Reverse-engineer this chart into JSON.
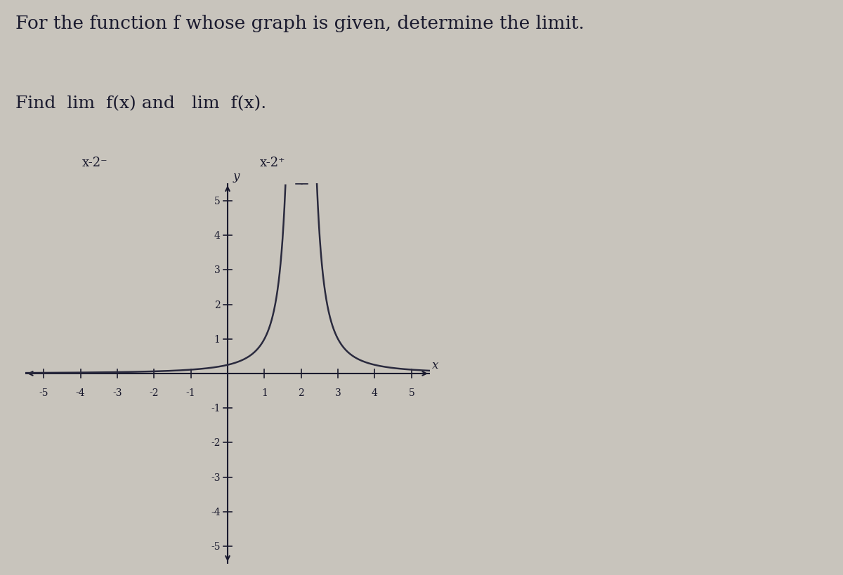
{
  "title_line1": "For the function f whose graph is given, determine the limit.",
  "find_text": "Find  lim  f(x) and   lim  f(x).",
  "sub1_text": "x–2⁻",
  "sub2_text": "x–2⁺",
  "xlim": [
    -5.5,
    5.5
  ],
  "ylim": [
    -5.5,
    5.5
  ],
  "x_ticks": [
    -5,
    -4,
    -3,
    -2,
    -1,
    1,
    2,
    3,
    4,
    5
  ],
  "y_ticks": [
    -5,
    -4,
    -3,
    -2,
    -1,
    1,
    2,
    3,
    4,
    5
  ],
  "background_color": "#c8c4bc",
  "curve_color": "#2a2a3e",
  "axis_color": "#1a1a2e",
  "text_color": "#1a1a2e",
  "asymptote_x": 2.0,
  "title_fontsize": 19,
  "find_fontsize": 18,
  "sub_fontsize": 13,
  "tick_fontsize": 10
}
